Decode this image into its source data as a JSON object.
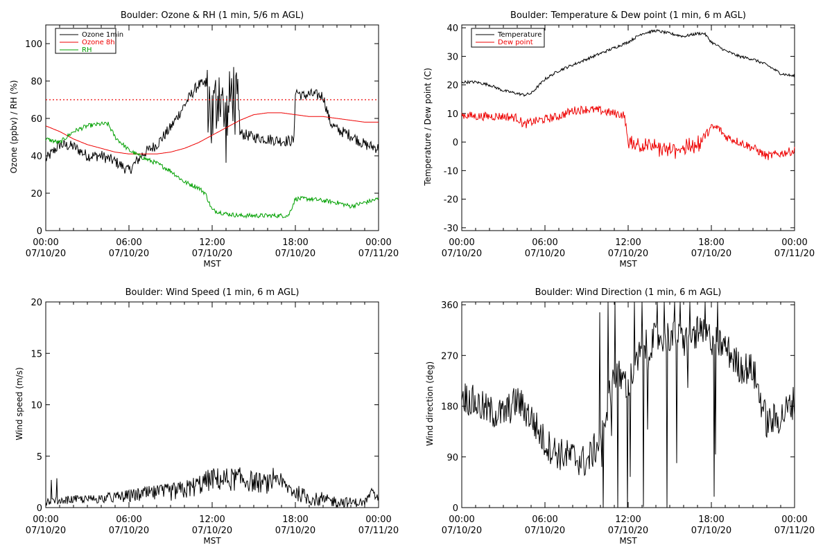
{
  "panels": {
    "ozone_rh": {
      "title": "Boulder: Ozone & RH (1 min, 5/6 m AGL)",
      "ylabel": "Ozone (ppbv) / RH (%)",
      "xlabel": "MST",
      "yticks": [
        "0",
        "20",
        "40",
        "60",
        "80",
        "100"
      ],
      "legend": {
        "ozone1": "Ozone 1min",
        "ozone8": "Ozone 8h",
        "rh": "RH"
      }
    },
    "temp_dew": {
      "title": "Boulder: Temperature & Dew point (1 min, 6 m AGL)",
      "ylabel": "Temperature / Dew point (C)",
      "xlabel": "MST",
      "yticks": [
        "-30",
        "-20",
        "-10",
        "0",
        "10",
        "20",
        "30",
        "40"
      ],
      "legend": {
        "temp": "Temperature",
        "dew": "Dew point"
      }
    },
    "wind_speed": {
      "title": "Boulder: Wind Speed (1 min, 6 m AGL)",
      "ylabel": "Wind speed (m/s)",
      "xlabel": "MST",
      "yticks": [
        "0",
        "5",
        "10",
        "15",
        "20"
      ]
    },
    "wind_dir": {
      "title": "Boulder: Wind Direction (1 min, 6 m AGL)",
      "ylabel": "Wind direction (deg)",
      "xlabel": "MST",
      "yticks": [
        "0",
        "90",
        "180",
        "270",
        "360"
      ]
    }
  },
  "xticks": {
    "times": [
      "00:00",
      "06:00",
      "12:00",
      "18:00",
      "00:00"
    ],
    "dates": [
      "07/10/20",
      "07/10/20",
      "07/10/20",
      "07/10/20",
      "07/11/20"
    ]
  },
  "colors": {
    "ozone1": "#000000",
    "ozone8": "#ee0000",
    "rh": "#00a000",
    "temp": "#000000",
    "dew": "#ee0000",
    "threshold": "#ee0000"
  },
  "chart_data": [
    {
      "type": "line",
      "title": "Boulder: Ozone & RH (1 min, 5/6 m AGL)",
      "xlabel": "MST",
      "ylabel": "Ozone (ppbv) / RH (%)",
      "xlim": [
        0,
        24
      ],
      "ylim": [
        0,
        110
      ],
      "x_unit": "hours MST since 07/10/20 00:00",
      "reference_line": 70,
      "series": [
        {
          "name": "Ozone 1min",
          "x": [
            0,
            1,
            2,
            3,
            4,
            5,
            6,
            7,
            8,
            9,
            10,
            10.5,
            11,
            11.5,
            12,
            12.5,
            13,
            13.5,
            14,
            15,
            16,
            17,
            17.9,
            18,
            18.5,
            19,
            20,
            20.5,
            21,
            22,
            23,
            24
          ],
          "y": [
            38,
            46,
            45,
            40,
            40,
            37,
            32,
            41,
            46,
            55,
            67,
            73,
            78,
            78,
            58,
            78,
            55,
            78,
            52,
            50,
            49,
            48,
            48,
            75,
            72,
            73,
            72,
            58,
            54,
            51,
            46,
            44
          ]
        },
        {
          "name": "Ozone 8h",
          "x": [
            0,
            1,
            2,
            3,
            4,
            5,
            6,
            7,
            8,
            9,
            10,
            11,
            12,
            13,
            14,
            15,
            16,
            17,
            18,
            19,
            20,
            21,
            22,
            23,
            24
          ],
          "y": [
            56,
            53,
            49,
            46,
            44,
            42,
            41,
            41,
            41,
            42,
            44,
            47,
            51,
            55,
            59,
            62,
            63,
            63,
            62,
            61,
            61,
            60,
            59,
            58,
            58
          ]
        },
        {
          "name": "RH",
          "x": [
            0,
            1,
            2,
            3,
            4,
            4.5,
            5,
            6,
            7,
            8,
            9,
            10,
            11,
            11.5,
            12,
            13,
            14,
            15,
            16,
            17,
            17.5,
            18,
            19,
            20,
            21,
            22,
            23,
            24
          ],
          "y": [
            49,
            47,
            53,
            56,
            57,
            57,
            50,
            43,
            39,
            36,
            32,
            26,
            23,
            20,
            11,
            9,
            8,
            8,
            8,
            8,
            8,
            17,
            17,
            16,
            15,
            13,
            15,
            17
          ]
        }
      ]
    },
    {
      "type": "line",
      "title": "Boulder: Temperature & Dew point (1 min, 6 m AGL)",
      "xlabel": "MST",
      "ylabel": "Temperature / Dew point (C)",
      "xlim": [
        0,
        24
      ],
      "ylim": [
        -31,
        41
      ],
      "x_unit": "hours MST since 07/10/20 00:00",
      "series": [
        {
          "name": "Temperature",
          "x": [
            0,
            1,
            2,
            3,
            4,
            4.5,
            5,
            6,
            7,
            8,
            9,
            10,
            11,
            12,
            13,
            14,
            15,
            16,
            17,
            17.5,
            18,
            19,
            20,
            21,
            22,
            23,
            24
          ],
          "y": [
            21,
            21,
            20,
            18,
            17,
            16.5,
            17,
            22,
            25,
            27,
            29,
            31,
            33,
            35,
            38,
            39,
            38,
            37,
            38,
            38,
            35,
            32,
            30,
            29,
            27,
            24,
            23
          ]
        },
        {
          "name": "Dew point",
          "x": [
            0,
            1,
            2,
            3,
            4,
            4.5,
            5,
            6,
            7,
            8,
            9,
            10,
            11,
            11.7,
            12,
            13,
            14,
            15,
            16,
            17,
            18,
            18.5,
            19,
            20,
            21,
            22,
            23,
            24
          ],
          "y": [
            9.5,
            9,
            9,
            9,
            8.5,
            6,
            7,
            8,
            9,
            11,
            11.5,
            11,
            10,
            9.5,
            0,
            -1,
            -2,
            -3,
            -2,
            -1,
            5,
            5,
            2,
            0,
            -2,
            -5,
            -4,
            -3
          ]
        }
      ]
    },
    {
      "type": "line",
      "title": "Boulder: Wind Speed (1 min, 6 m AGL)",
      "xlabel": "MST",
      "ylabel": "Wind speed (m/s)",
      "xlim": [
        0,
        24
      ],
      "ylim": [
        0,
        20
      ],
      "x_unit": "hours MST since 07/10/20 00:00",
      "series": [
        {
          "name": "",
          "x": [
            0,
            1,
            2,
            3,
            4,
            5,
            6,
            7,
            8,
            9,
            10,
            11,
            12,
            13,
            14,
            15,
            16,
            17,
            18,
            19,
            20,
            21,
            22,
            23,
            23.5,
            24
          ],
          "y": [
            0.6,
            0.7,
            0.8,
            0.8,
            0.9,
            1.0,
            1.1,
            1.3,
            1.4,
            1.5,
            1.7,
            2.2,
            2.8,
            2.7,
            2.8,
            2.5,
            2.3,
            2.3,
            1.5,
            0.9,
            0.7,
            0.6,
            0.5,
            0.5,
            1.5,
            0.8
          ]
        }
      ]
    },
    {
      "type": "line",
      "title": "Boulder: Wind Direction (1 min, 6 m AGL)",
      "xlabel": "MST",
      "ylabel": "Wind direction (deg)",
      "xlim": [
        0,
        24
      ],
      "ylim": [
        0,
        365
      ],
      "x_unit": "hours MST since 07/10/20 00:00",
      "series": [
        {
          "name": "",
          "x": [
            0,
            1,
            2,
            3,
            4,
            5,
            6,
            7,
            8,
            9,
            10,
            11,
            12,
            13,
            14,
            15,
            16,
            17,
            18,
            19,
            20,
            21,
            22,
            23,
            24
          ],
          "y": [
            200,
            185,
            170,
            165,
            190,
            160,
            115,
            95,
            90,
            80,
            120,
            240,
            220,
            280,
            300,
            305,
            295,
            310,
            300,
            285,
            250,
            245,
            150,
            160,
            190
          ]
        }
      ]
    }
  ]
}
